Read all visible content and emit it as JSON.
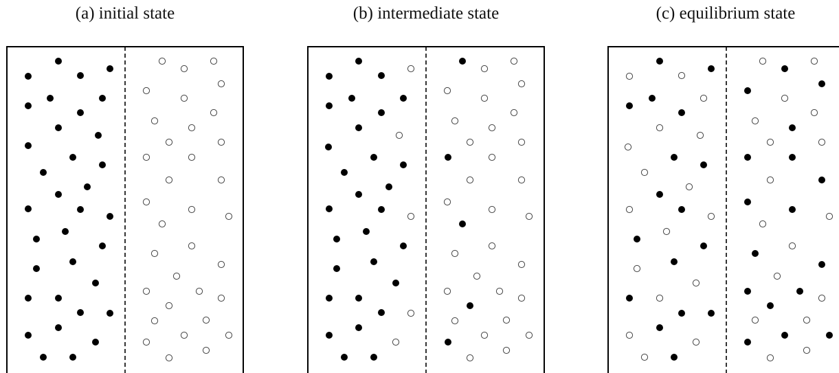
{
  "panels": [
    {
      "id": "a",
      "title": "(a) initial state",
      "particles": {
        "left_filled": [
          [
            85,
            89
          ],
          [
            160,
            100
          ],
          [
            41,
            111
          ],
          [
            117,
            110
          ],
          [
            73,
            143
          ],
          [
            149,
            143
          ],
          [
            41,
            154
          ],
          [
            117,
            164
          ],
          [
            85,
            186
          ],
          [
            143,
            197
          ],
          [
            41,
            212
          ],
          [
            106,
            229
          ],
          [
            149,
            240
          ],
          [
            63,
            251
          ],
          [
            127,
            272
          ],
          [
            85,
            283
          ],
          [
            41,
            304
          ],
          [
            117,
            305
          ],
          [
            160,
            315
          ],
          [
            95,
            337
          ],
          [
            53,
            348
          ],
          [
            149,
            358
          ],
          [
            106,
            381
          ],
          [
            53,
            391
          ],
          [
            139,
            412
          ],
          [
            41,
            434
          ],
          [
            85,
            434
          ],
          [
            117,
            455
          ],
          [
            160,
            456
          ],
          [
            85,
            477
          ],
          [
            41,
            488
          ],
          [
            139,
            498
          ],
          [
            63,
            520
          ],
          [
            106,
            520
          ]
        ],
        "left_hollow": [],
        "right_filled": [],
        "right_hollow": [
          [
            236,
            89
          ],
          [
            311,
            89
          ],
          [
            268,
            100
          ],
          [
            322,
            122
          ],
          [
            213,
            132
          ],
          [
            268,
            143
          ],
          [
            311,
            164
          ],
          [
            225,
            176
          ],
          [
            279,
            186
          ],
          [
            246,
            207
          ],
          [
            322,
            207
          ],
          [
            213,
            229
          ],
          [
            279,
            229
          ],
          [
            246,
            262
          ],
          [
            322,
            262
          ],
          [
            213,
            294
          ],
          [
            279,
            305
          ],
          [
            333,
            315
          ],
          [
            236,
            326
          ],
          [
            279,
            358
          ],
          [
            225,
            369
          ],
          [
            322,
            385
          ],
          [
            257,
            402
          ],
          [
            213,
            424
          ],
          [
            290,
            424
          ],
          [
            322,
            434
          ],
          [
            246,
            445
          ],
          [
            300,
            466
          ],
          [
            225,
            467
          ],
          [
            213,
            498
          ],
          [
            268,
            488
          ],
          [
            333,
            488
          ],
          [
            300,
            510
          ],
          [
            246,
            521
          ]
        ]
      }
    },
    {
      "id": "b",
      "title": "(b) intermediate state",
      "particles": {
        "left_filled": [
          [
            522,
            89
          ],
          [
            479,
            111
          ],
          [
            555,
            110
          ],
          [
            512,
            143
          ],
          [
            587,
            143
          ],
          [
            479,
            154
          ],
          [
            555,
            164
          ],
          [
            522,
            186
          ],
          [
            478,
            214
          ],
          [
            544,
            229
          ],
          [
            587,
            240
          ],
          [
            501,
            251
          ],
          [
            566,
            272
          ],
          [
            522,
            283
          ],
          [
            479,
            304
          ],
          [
            555,
            305
          ],
          [
            533,
            337
          ],
          [
            490,
            348
          ],
          [
            587,
            358
          ],
          [
            544,
            381
          ],
          [
            490,
            391
          ],
          [
            576,
            412
          ],
          [
            479,
            434
          ],
          [
            522,
            434
          ],
          [
            555,
            455
          ],
          [
            522,
            477
          ],
          [
            479,
            488
          ],
          [
            501,
            520
          ],
          [
            544,
            520
          ]
        ],
        "left_hollow": [
          [
            598,
            100
          ],
          [
            581,
            197
          ],
          [
            598,
            315
          ],
          [
            598,
            456
          ],
          [
            576,
            498
          ]
        ],
        "right_filled": [
          [
            673,
            89
          ],
          [
            652,
            229
          ],
          [
            673,
            326
          ],
          [
            684,
            445
          ],
          [
            652,
            498
          ]
        ],
        "right_hollow": [
          [
            748,
            89
          ],
          [
            705,
            100
          ],
          [
            759,
            122
          ],
          [
            651,
            132
          ],
          [
            705,
            143
          ],
          [
            748,
            164
          ],
          [
            662,
            176
          ],
          [
            716,
            186
          ],
          [
            684,
            207
          ],
          [
            759,
            207
          ],
          [
            716,
            229
          ],
          [
            684,
            262
          ],
          [
            759,
            262
          ],
          [
            651,
            294
          ],
          [
            716,
            305
          ],
          [
            770,
            315
          ],
          [
            716,
            358
          ],
          [
            662,
            369
          ],
          [
            759,
            385
          ],
          [
            694,
            402
          ],
          [
            651,
            424
          ],
          [
            727,
            424
          ],
          [
            759,
            434
          ],
          [
            662,
            467
          ],
          [
            737,
            466
          ],
          [
            705,
            488
          ],
          [
            770,
            488
          ],
          [
            737,
            510
          ],
          [
            684,
            521
          ]
        ]
      }
    },
    {
      "id": "c",
      "title": "(c) equilibrium state",
      "particles": {
        "left_filled": [
          [
            960,
            89
          ],
          [
            1035,
            100
          ],
          [
            949,
            143
          ],
          [
            916,
            154
          ],
          [
            992,
            164
          ],
          [
            981,
            229
          ],
          [
            1024,
            240
          ],
          [
            960,
            283
          ],
          [
            992,
            305
          ],
          [
            927,
            348
          ],
          [
            1024,
            358
          ],
          [
            981,
            381
          ],
          [
            916,
            434
          ],
          [
            992,
            456
          ],
          [
            1035,
            456
          ],
          [
            960,
            477
          ],
          [
            981,
            520
          ]
        ],
        "left_hollow": [
          [
            916,
            111
          ],
          [
            992,
            110
          ],
          [
            1024,
            143
          ],
          [
            960,
            186
          ],
          [
            1019,
            197
          ],
          [
            914,
            214
          ],
          [
            938,
            251
          ],
          [
            1003,
            272
          ],
          [
            916,
            305
          ],
          [
            1035,
            315
          ],
          [
            970,
            337
          ],
          [
            927,
            391
          ],
          [
            1013,
            412
          ],
          [
            960,
            434
          ],
          [
            1013,
            498
          ],
          [
            916,
            488
          ],
          [
            938,
            520
          ]
        ],
        "right_filled": [
          [
            1142,
            100
          ],
          [
            1196,
            122
          ],
          [
            1088,
            132
          ],
          [
            1153,
            186
          ],
          [
            1088,
            229
          ],
          [
            1153,
            229
          ],
          [
            1196,
            262
          ],
          [
            1088,
            294
          ],
          [
            1153,
            305
          ],
          [
            1099,
            369
          ],
          [
            1196,
            385
          ],
          [
            1088,
            424
          ],
          [
            1164,
            424
          ],
          [
            1121,
            445
          ],
          [
            1142,
            488
          ],
          [
            1207,
            488
          ],
          [
            1088,
            498
          ]
        ],
        "right_hollow": [
          [
            1110,
            89
          ],
          [
            1185,
            89
          ],
          [
            1142,
            143
          ],
          [
            1185,
            164
          ],
          [
            1099,
            176
          ],
          [
            1121,
            207
          ],
          [
            1196,
            207
          ],
          [
            1121,
            262
          ],
          [
            1207,
            315
          ],
          [
            1110,
            326
          ],
          [
            1153,
            358
          ],
          [
            1131,
            402
          ],
          [
            1196,
            434
          ],
          [
            1099,
            466
          ],
          [
            1174,
            466
          ],
          [
            1174,
            510
          ],
          [
            1121,
            521
          ]
        ]
      }
    }
  ]
}
